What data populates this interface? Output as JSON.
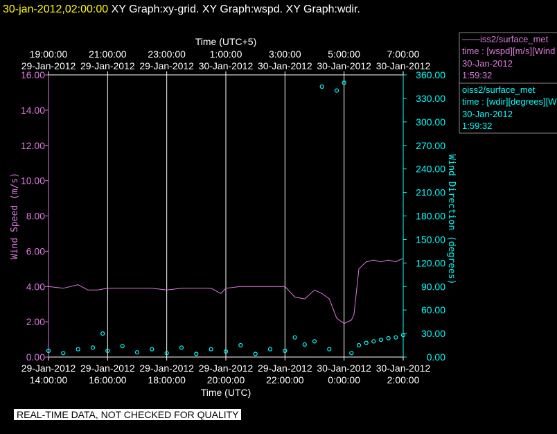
{
  "header": {
    "timestamp": "30-jan-2012,02:00:00",
    "titles": "XY Graph:xy-grid.  XY Graph:wspd.  XY Graph:wdir."
  },
  "legend": [
    {
      "symbol": "——",
      "source": "iss2/surface_met",
      "variable": "time : [wspd][m/s][Wind",
      "date": "30-Jan-2012",
      "time": "1:59:32"
    },
    {
      "symbol": "o",
      "source": "iss2/surface_met",
      "variable": "time : [wdir][degrees][W",
      "date": "30-Jan-2012",
      "time": "1:59:32"
    }
  ],
  "quality_notice": "REAL-TIME DATA, NOT CHECKED FOR QUALITY",
  "colors": {
    "background": "#000000",
    "foreground": "#ffffff",
    "header_time": "#ffff00",
    "wspd": "#e07ae0",
    "wdir": "#00ffff",
    "legend_border": "#888888",
    "notice_bg": "#ffffff"
  },
  "chart_data": {
    "type": "line",
    "x_bottom_label": "Time (UTC)",
    "x_top_label": "Time (UTC+5)",
    "xlim": [
      "2012-01-29T14:00",
      "2012-01-30T02:00"
    ],
    "x_ticks_bottom": [
      {
        "time": "14:00:00",
        "date": "29-Jan-2012"
      },
      {
        "time": "16:00:00",
        "date": "29-Jan-2012"
      },
      {
        "time": "18:00:00",
        "date": "29-Jan-2012"
      },
      {
        "time": "20:00:00",
        "date": "29-Jan-2012"
      },
      {
        "time": "22:00:00",
        "date": "29-Jan-2012"
      },
      {
        "time": "0:00:00",
        "date": "30-Jan-2012"
      },
      {
        "time": "2:00:00",
        "date": "30-Jan-2012"
      }
    ],
    "x_ticks_top": [
      {
        "time": "19:00:00",
        "date": "29-Jan-2012"
      },
      {
        "time": "21:00:00",
        "date": "29-Jan-2012"
      },
      {
        "time": "23:00:00",
        "date": "29-Jan-2012"
      },
      {
        "time": "1:00:00",
        "date": "30-Jan-2012"
      },
      {
        "time": "3:00:00",
        "date": "30-Jan-2012"
      },
      {
        "time": "5:00:00",
        "date": "30-Jan-2012"
      },
      {
        "time": "7:00:00",
        "date": "30-Jan-2012"
      }
    ],
    "grid": "vertical",
    "y_left": {
      "label": "Wind Speed (m/s)",
      "range": [
        0,
        16
      ],
      "ticks": [
        "0.00",
        "2.00",
        "4.00",
        "6.00",
        "8.00",
        "10.00",
        "12.00",
        "14.00",
        "16.00"
      ]
    },
    "y_right": {
      "label": "Wind Direction (degrees)",
      "range": [
        0,
        360
      ],
      "ticks": [
        "0.00",
        "30.00",
        "60.00",
        "90.00",
        "120.00",
        "150.00",
        "180.00",
        "210.00",
        "240.00",
        "270.00",
        "300.00",
        "330.00",
        "360.00"
      ]
    },
    "series": [
      {
        "name": "iss2/surface_met",
        "axis": "left",
        "style": "line",
        "x": [
          "2012-01-29T14:00",
          "2012-01-29T14:30",
          "2012-01-29T15:00",
          "2012-01-29T15:20",
          "2012-01-29T15:40",
          "2012-01-29T16:00",
          "2012-01-29T16:30",
          "2012-01-29T17:00",
          "2012-01-29T17:30",
          "2012-01-29T18:00",
          "2012-01-29T18:30",
          "2012-01-29T19:00",
          "2012-01-29T19:30",
          "2012-01-29T19:50",
          "2012-01-29T20:00",
          "2012-01-29T20:30",
          "2012-01-29T21:00",
          "2012-01-29T21:30",
          "2012-01-29T22:00",
          "2012-01-29T22:20",
          "2012-01-29T22:40",
          "2012-01-29T23:00",
          "2012-01-29T23:15",
          "2012-01-29T23:30",
          "2012-01-29T23:45",
          "2012-01-30T00:00",
          "2012-01-30T00:15",
          "2012-01-30T00:20",
          "2012-01-30T00:30",
          "2012-01-30T00:45",
          "2012-01-30T01:00",
          "2012-01-30T01:15",
          "2012-01-30T01:30",
          "2012-01-30T01:45",
          "2012-01-30T02:00"
        ],
        "y": [
          4.0,
          3.9,
          4.1,
          3.8,
          3.8,
          3.9,
          3.9,
          3.9,
          3.9,
          3.8,
          3.9,
          3.9,
          3.9,
          3.6,
          3.9,
          4.0,
          4.0,
          4.0,
          4.0,
          3.4,
          3.3,
          3.8,
          3.6,
          3.3,
          2.2,
          1.9,
          2.1,
          2.4,
          5.0,
          5.4,
          5.5,
          5.4,
          5.5,
          5.4,
          5.6
        ]
      },
      {
        "name": "iss2/surface_met",
        "axis": "right",
        "style": "markers",
        "x": [
          "2012-01-29T14:00",
          "2012-01-29T14:30",
          "2012-01-29T15:00",
          "2012-01-29T15:30",
          "2012-01-29T15:50",
          "2012-01-29T16:00",
          "2012-01-29T16:30",
          "2012-01-29T17:00",
          "2012-01-29T17:30",
          "2012-01-29T18:00",
          "2012-01-29T18:30",
          "2012-01-29T19:00",
          "2012-01-29T19:30",
          "2012-01-29T20:00",
          "2012-01-29T20:30",
          "2012-01-29T21:00",
          "2012-01-29T21:30",
          "2012-01-29T22:00",
          "2012-01-29T22:20",
          "2012-01-29T22:40",
          "2012-01-29T23:00",
          "2012-01-29T23:15",
          "2012-01-29T23:30",
          "2012-01-29T23:45",
          "2012-01-30T00:00",
          "2012-01-30T00:15",
          "2012-01-30T00:30",
          "2012-01-30T00:45",
          "2012-01-30T01:00",
          "2012-01-30T01:15",
          "2012-01-30T01:30",
          "2012-01-30T01:45",
          "2012-01-30T02:00"
        ],
        "y": [
          8,
          5,
          10,
          12,
          30,
          8,
          14,
          6,
          10,
          5,
          12,
          4,
          10,
          7,
          15,
          4,
          10,
          8,
          25,
          16,
          20,
          345,
          10,
          340,
          350,
          5,
          15,
          18,
          20,
          22,
          24,
          25,
          28
        ]
      }
    ]
  }
}
